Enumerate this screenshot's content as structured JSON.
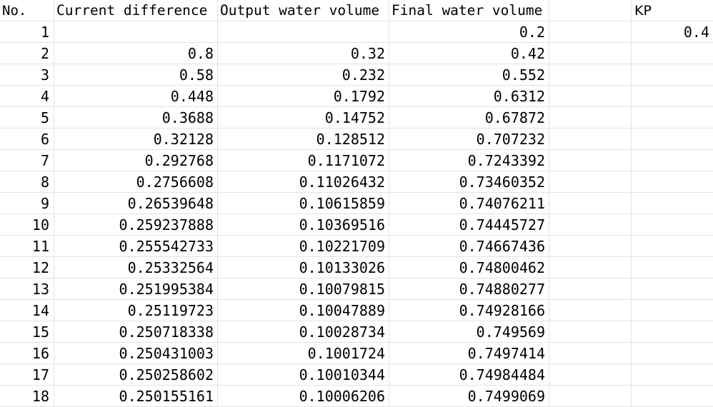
{
  "headers": {
    "no": "No.",
    "current_difference": "Current difference",
    "output_water_volume": "Output water volume",
    "final_water_volume": "Final water volume",
    "blank": "",
    "kp": "KP"
  },
  "kp_value": "0.4",
  "rows": [
    {
      "no": "1",
      "current_difference": "",
      "output_water_volume": "",
      "final_water_volume": "0.2"
    },
    {
      "no": "2",
      "current_difference": "0.8",
      "output_water_volume": "0.32",
      "final_water_volume": "0.42"
    },
    {
      "no": "3",
      "current_difference": "0.58",
      "output_water_volume": "0.232",
      "final_water_volume": "0.552"
    },
    {
      "no": "4",
      "current_difference": "0.448",
      "output_water_volume": "0.1792",
      "final_water_volume": "0.6312"
    },
    {
      "no": "5",
      "current_difference": "0.3688",
      "output_water_volume": "0.14752",
      "final_water_volume": "0.67872"
    },
    {
      "no": "6",
      "current_difference": "0.32128",
      "output_water_volume": "0.128512",
      "final_water_volume": "0.707232"
    },
    {
      "no": "7",
      "current_difference": "0.292768",
      "output_water_volume": "0.1171072",
      "final_water_volume": "0.7243392"
    },
    {
      "no": "8",
      "current_difference": "0.2756608",
      "output_water_volume": "0.11026432",
      "final_water_volume": "0.73460352"
    },
    {
      "no": "9",
      "current_difference": "0.26539648",
      "output_water_volume": "0.10615859",
      "final_water_volume": "0.74076211"
    },
    {
      "no": "10",
      "current_difference": "0.259237888",
      "output_water_volume": "0.10369516",
      "final_water_volume": "0.74445727"
    },
    {
      "no": "11",
      "current_difference": "0.255542733",
      "output_water_volume": "0.10221709",
      "final_water_volume": "0.74667436"
    },
    {
      "no": "12",
      "current_difference": "0.25332564",
      "output_water_volume": "0.10133026",
      "final_water_volume": "0.74800462"
    },
    {
      "no": "13",
      "current_difference": "0.251995384",
      "output_water_volume": "0.10079815",
      "final_water_volume": "0.74880277"
    },
    {
      "no": "14",
      "current_difference": "0.25119723",
      "output_water_volume": "0.10047889",
      "final_water_volume": "0.74928166"
    },
    {
      "no": "15",
      "current_difference": "0.250718338",
      "output_water_volume": "0.10028734",
      "final_water_volume": "0.749569"
    },
    {
      "no": "16",
      "current_difference": "0.250431003",
      "output_water_volume": "0.1001724",
      "final_water_volume": "0.7497414"
    },
    {
      "no": "17",
      "current_difference": "0.250258602",
      "output_water_volume": "0.10010344",
      "final_water_volume": "0.74984484"
    },
    {
      "no": "18",
      "current_difference": "0.250155161",
      "output_water_volume": "0.10006206",
      "final_water_volume": "0.7499069"
    }
  ]
}
